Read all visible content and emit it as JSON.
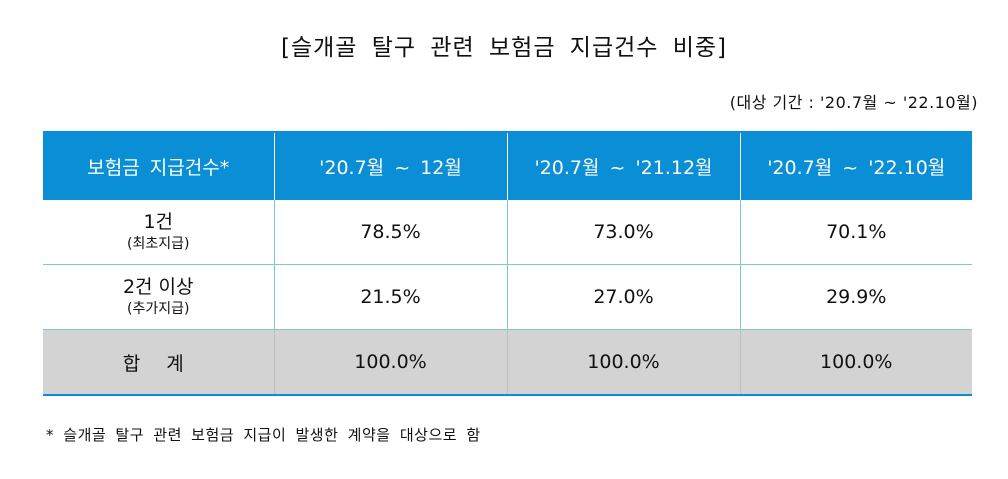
{
  "title": "[슬개골 탈구 관련 보험금 지급건수 비중]",
  "period_note": "(대상 기간 : '20.7월 ~ '22.10월)",
  "table": {
    "headers": [
      "보험금 지급건수*",
      "'20.7월 ~ 12월",
      "'20.7월 ~ '21.12월",
      "'20.7월 ~ '22.10월"
    ],
    "rows": [
      {
        "label": "1건",
        "sublabel": "(최초지급)",
        "values": [
          "78.5%",
          "73.0%",
          "70.1%"
        ]
      },
      {
        "label": "2건 이상",
        "sublabel": "(추가지급)",
        "values": [
          "21.5%",
          "27.0%",
          "29.9%"
        ]
      }
    ],
    "total": {
      "label": "합 계",
      "values": [
        "100.0%",
        "100.0%",
        "100.0%"
      ]
    }
  },
  "footnote": "* 슬개골 탈구 관련 보험금 지급이 발생한 계약을 대상으로 함",
  "colors": {
    "header_bg": "#0a8fd6",
    "total_bg": "#d3d3d3",
    "grid_line": "#7fc6dc"
  }
}
